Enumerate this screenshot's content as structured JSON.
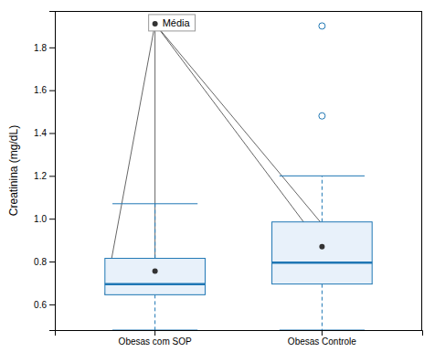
{
  "chart_data": {
    "type": "box",
    "ylabel": "Creatinina (mg/dL)",
    "categories": [
      "Obesas com SOP",
      "Obesas Controle"
    ],
    "boxes": [
      {
        "median": 0.695,
        "q1": 0.645,
        "q3": 0.815,
        "whisker_low": 0.48,
        "whisker_high": 1.07,
        "mean": 0.755,
        "outliers": []
      },
      {
        "median": 0.795,
        "q1": 0.695,
        "q3": 0.985,
        "whisker_low": 0.48,
        "whisker_high": 1.2,
        "mean": 0.87,
        "outliers": [
          1.48,
          1.9
        ]
      }
    ],
    "mean_label": "Média",
    "legend": "upper left",
    "grid": false,
    "ylim": [
      0.48,
      1.97
    ],
    "yticks": [
      0.6,
      0.8,
      {
        "value": 1.0,
        "label": "1.0"
      },
      1.2,
      1.4,
      1.6,
      1.8
    ]
  }
}
